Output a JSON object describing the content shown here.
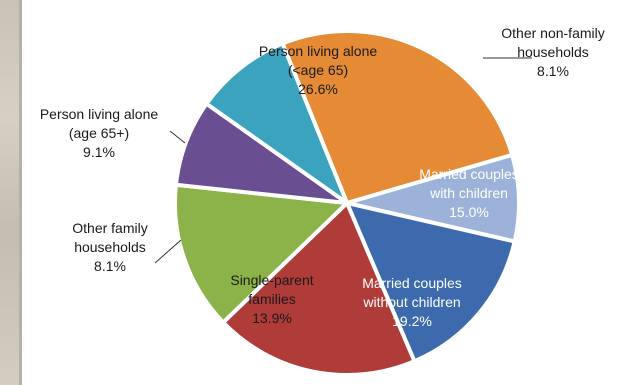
{
  "chart_data": {
    "type": "pie",
    "slices": [
      {
        "label": [
          "Person living alone",
          "(<age 65)"
        ],
        "value": 26.6,
        "value_label": "26.6%",
        "color": "#e58a35",
        "label_style": "dark"
      },
      {
        "label": [
          "Other non-family",
          "households"
        ],
        "value": 8.1,
        "value_label": "8.1%",
        "color": "#9db2d9",
        "label_style": "external"
      },
      {
        "label": [
          "Married couples",
          "with children"
        ],
        "value": 15.0,
        "value_label": "15.0%",
        "color": "#3c6aad",
        "label_style": "light"
      },
      {
        "label": [
          "Married couples",
          "without children"
        ],
        "value": 19.2,
        "value_label": "19.2%",
        "color": "#b03c3a",
        "label_style": "light"
      },
      {
        "label": [
          "Single-parent",
          "families"
        ],
        "value": 13.9,
        "value_label": "13.9%",
        "color": "#8cb24a",
        "label_style": "dark"
      },
      {
        "label": [
          "Other family",
          "households"
        ],
        "value": 8.1,
        "value_label": "8.1%",
        "color": "#6a4e92",
        "label_style": "external"
      },
      {
        "label": [
          "Person living alone",
          "(age 65+)"
        ],
        "value": 9.1,
        "value_label": "9.1%",
        "color": "#3ba3bd",
        "label_style": "external"
      }
    ]
  }
}
